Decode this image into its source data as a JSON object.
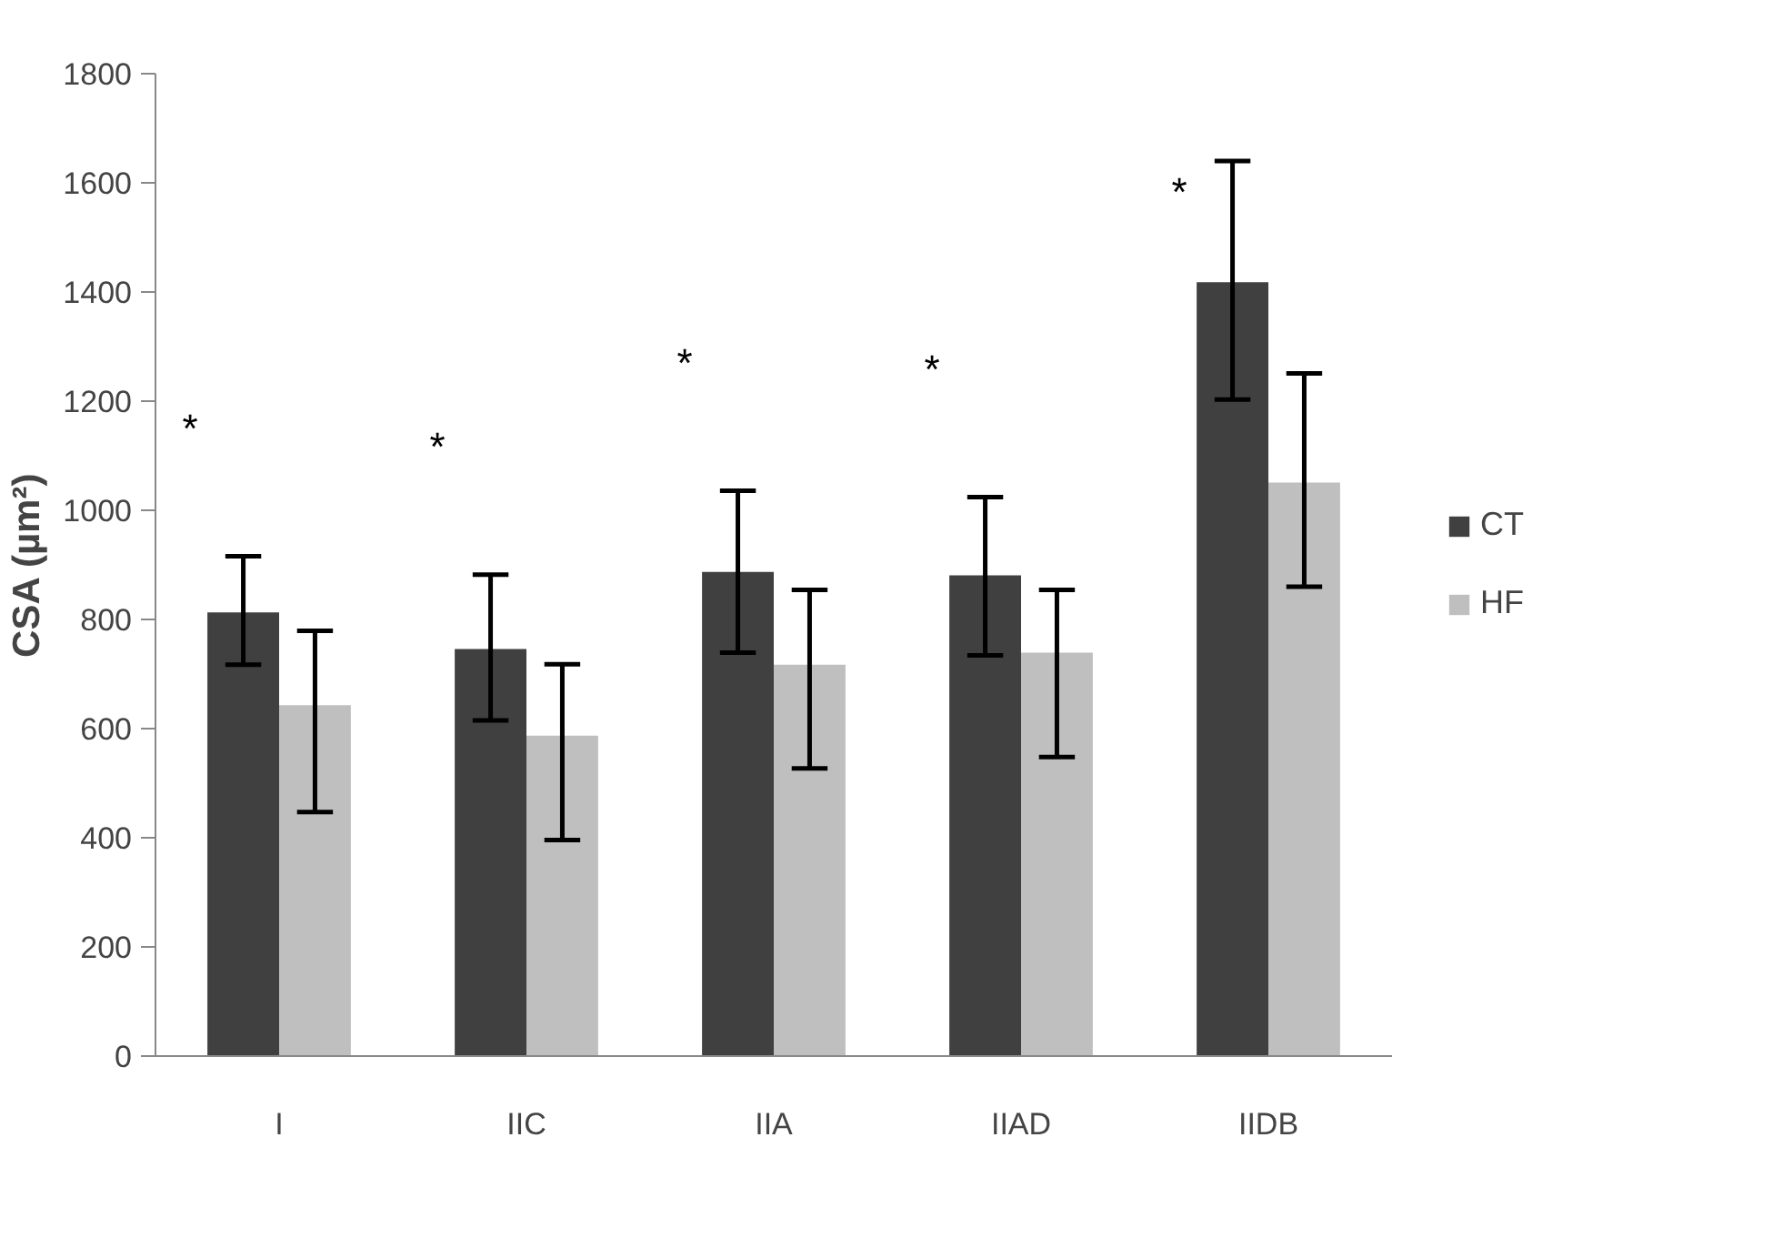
{
  "chart_data": {
    "type": "bar",
    "ylabel": "CSA (µm²)",
    "categories": [
      "I",
      "IIC",
      "IIA",
      "IIAD",
      "IIDB"
    ],
    "series": [
      {
        "name": "CT",
        "color": "#404040",
        "values": [
          813,
          746,
          887,
          881,
          1418
        ],
        "errors": [
          [
            717,
            916
          ],
          [
            615,
            882
          ],
          [
            739,
            1036
          ],
          [
            734,
            1024
          ],
          [
            1203,
            1640
          ]
        ]
      },
      {
        "name": "HF",
        "color": "#bfbfbf",
        "values": [
          643,
          587,
          717,
          739,
          1051
        ],
        "errors": [
          [
            447,
            779
          ],
          [
            396,
            718
          ],
          [
            527,
            854
          ],
          [
            548,
            854
          ],
          [
            860,
            1251
          ]
        ]
      }
    ],
    "ylim": [
      0,
      1800
    ],
    "yticks": [
      0,
      200,
      400,
      600,
      800,
      1000,
      1200,
      1400,
      1600,
      1800
    ],
    "grid": false,
    "legend": "right",
    "annotations": [
      "*",
      "*",
      "*",
      "*",
      "*"
    ]
  }
}
